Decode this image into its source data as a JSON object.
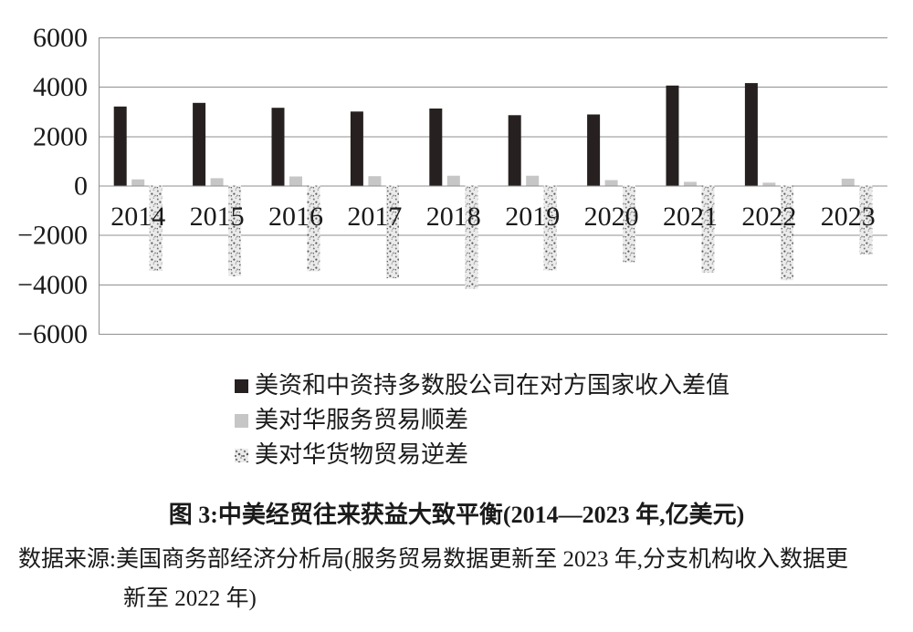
{
  "figure": {
    "title": "图 3:中美经贸往来获益大致平衡(2014—2023 年,亿美元)",
    "source_line1": "数据来源:美国商务部经济分析局(服务贸易数据更新至 2023 年,分支机构收入数据更",
    "source_line2": "新至 2022 年)"
  },
  "chart_data": {
    "type": "bar",
    "unit": "亿美元",
    "categories": [
      "2014",
      "2015",
      "2016",
      "2017",
      "2018",
      "2019",
      "2020",
      "2021",
      "2022",
      "2023"
    ],
    "series": [
      {
        "name": "美资和中资持多数股公司在对方国家收入差值",
        "swatch": "solid-dark",
        "color": "#262020",
        "values": [
          3200,
          3350,
          3150,
          3000,
          3120,
          2850,
          2880,
          4050,
          4150,
          null
        ]
      },
      {
        "name": "美对华服务贸易顺差",
        "swatch": "solid-gray",
        "color": "#c6c6c6",
        "values": [
          250,
          300,
          370,
          380,
          400,
          400,
          220,
          150,
          120,
          280
        ]
      },
      {
        "name": "美对华货物贸易逆差",
        "swatch": "speckle",
        "color": "speckle",
        "values": [
          -3450,
          -3670,
          -3470,
          -3750,
          -4180,
          -3430,
          -3100,
          -3530,
          -3830,
          -2790
        ]
      }
    ],
    "yticks": [
      6000,
      4000,
      2000,
      0,
      -2000,
      -4000,
      -6000
    ],
    "ylim": [
      -6000,
      6000
    ],
    "grid": true,
    "gridline_color": "#8f8f8f",
    "text_color": "#1a1a1a",
    "legend_position": "below-left"
  }
}
